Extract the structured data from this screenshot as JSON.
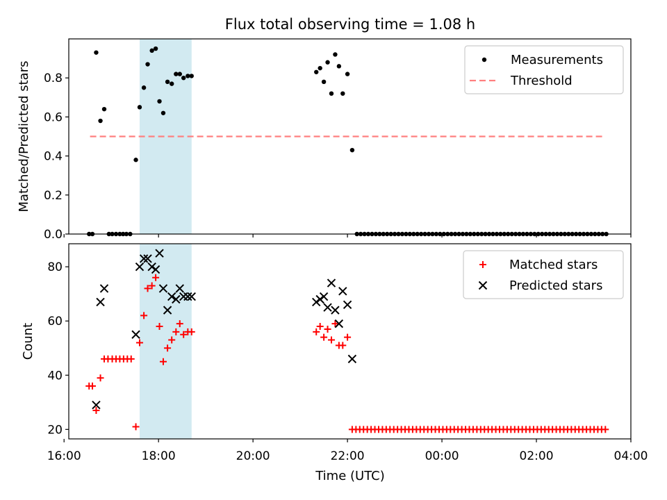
{
  "chart_data": [
    {
      "type": "scatter",
      "title": "Flux total observing time = 1.08 h",
      "xlabel": "",
      "ylabel": "Matched/Predicted stars",
      "xlim": [
        16.1,
        28.0
      ],
      "ylim": [
        0.0,
        1.0
      ],
      "yticks": [
        0.0,
        0.2,
        0.4,
        0.6,
        0.8
      ],
      "ytick_labels": [
        "0.0",
        "0.2",
        "0.4",
        "0.6",
        "0.8"
      ],
      "xticks": [
        16,
        18,
        20,
        22,
        24,
        26,
        28
      ],
      "highlight_span": [
        17.6,
        18.7
      ],
      "highlight_color": "#add8e6",
      "legend": {
        "placement": "upper right",
        "entries": [
          "Measurements",
          "Threshold"
        ]
      },
      "series": [
        {
          "name": "Measurements",
          "marker": "dot",
          "color": "#000000",
          "points": [
            [
              16.53,
              0.0
            ],
            [
              16.6,
              0.0
            ],
            [
              16.68,
              0.93
            ],
            [
              16.77,
              0.58
            ],
            [
              16.85,
              0.64
            ],
            [
              16.95,
              0.0
            ],
            [
              17.02,
              0.0
            ],
            [
              17.1,
              0.0
            ],
            [
              17.18,
              0.0
            ],
            [
              17.25,
              0.0
            ],
            [
              17.32,
              0.0
            ],
            [
              17.4,
              0.0
            ],
            [
              17.52,
              0.38
            ],
            [
              17.6,
              0.65
            ],
            [
              17.69,
              0.75
            ],
            [
              17.77,
              0.87
            ],
            [
              17.86,
              0.94
            ],
            [
              17.94,
              0.95
            ],
            [
              18.02,
              0.68
            ],
            [
              18.1,
              0.62
            ],
            [
              18.19,
              0.78
            ],
            [
              18.28,
              0.77
            ],
            [
              18.37,
              0.82
            ],
            [
              18.45,
              0.82
            ],
            [
              18.53,
              0.8
            ],
            [
              18.62,
              0.81
            ],
            [
              18.7,
              0.81
            ],
            [
              21.34,
              0.83
            ],
            [
              21.42,
              0.85
            ],
            [
              21.5,
              0.78
            ],
            [
              21.58,
              0.88
            ],
            [
              21.66,
              0.72
            ],
            [
              21.74,
              0.92
            ],
            [
              21.82,
              0.86
            ],
            [
              21.9,
              0.72
            ],
            [
              22.0,
              0.82
            ],
            [
              22.1,
              0.43
            ],
            [
              22.2,
              0.0
            ],
            [
              22.28,
              0.0
            ],
            [
              22.36,
              0.0
            ],
            [
              22.44,
              0.0
            ],
            [
              22.52,
              0.0
            ],
            [
              22.6,
              0.0
            ],
            [
              22.68,
              0.0
            ],
            [
              22.76,
              0.0
            ],
            [
              22.84,
              0.0
            ],
            [
              22.92,
              0.0
            ],
            [
              23.0,
              0.0
            ],
            [
              23.08,
              0.0
            ],
            [
              23.16,
              0.0
            ],
            [
              23.24,
              0.0
            ],
            [
              23.32,
              0.0
            ],
            [
              23.4,
              0.0
            ],
            [
              23.48,
              0.0
            ],
            [
              23.56,
              0.0
            ],
            [
              23.64,
              0.0
            ],
            [
              23.72,
              0.0
            ],
            [
              23.8,
              0.0
            ],
            [
              23.88,
              0.0
            ],
            [
              23.96,
              0.0
            ],
            [
              24.04,
              0.0
            ],
            [
              24.12,
              0.0
            ],
            [
              24.2,
              0.0
            ],
            [
              24.28,
              0.0
            ],
            [
              24.36,
              0.0
            ],
            [
              24.44,
              0.0
            ],
            [
              24.52,
              0.0
            ],
            [
              24.6,
              0.0
            ],
            [
              24.68,
              0.0
            ],
            [
              24.76,
              0.0
            ],
            [
              24.84,
              0.0
            ],
            [
              24.92,
              0.0
            ],
            [
              25.0,
              0.0
            ],
            [
              25.08,
              0.0
            ],
            [
              25.16,
              0.0
            ],
            [
              25.24,
              0.0
            ],
            [
              25.32,
              0.0
            ],
            [
              25.4,
              0.0
            ],
            [
              25.48,
              0.0
            ],
            [
              25.56,
              0.0
            ],
            [
              25.64,
              0.0
            ],
            [
              25.72,
              0.0
            ],
            [
              25.8,
              0.0
            ],
            [
              25.88,
              0.0
            ],
            [
              25.96,
              0.0
            ],
            [
              26.04,
              0.0
            ],
            [
              26.12,
              0.0
            ],
            [
              26.2,
              0.0
            ],
            [
              26.28,
              0.0
            ],
            [
              26.36,
              0.0
            ],
            [
              26.44,
              0.0
            ],
            [
              26.52,
              0.0
            ],
            [
              26.6,
              0.0
            ],
            [
              26.68,
              0.0
            ],
            [
              26.76,
              0.0
            ],
            [
              26.84,
              0.0
            ],
            [
              26.92,
              0.0
            ],
            [
              27.0,
              0.0
            ],
            [
              27.08,
              0.0
            ],
            [
              27.16,
              0.0
            ],
            [
              27.24,
              0.0
            ],
            [
              27.32,
              0.0
            ],
            [
              27.4,
              0.0
            ],
            [
              27.48,
              0.0
            ]
          ]
        },
        {
          "name": "Threshold",
          "type": "line",
          "style": "dashed",
          "color": "#ff7f7f",
          "points": [
            [
              16.55,
              0.5
            ],
            [
              27.45,
              0.5
            ]
          ]
        }
      ]
    },
    {
      "type": "scatter",
      "title": "",
      "xlabel": "Time (UTC)",
      "ylabel": "Count",
      "xlim": [
        16.1,
        28.0
      ],
      "ylim": [
        16.5,
        88.5
      ],
      "yticks": [
        20,
        40,
        60,
        80
      ],
      "ytick_labels": [
        "20",
        "40",
        "60",
        "80"
      ],
      "xticks": [
        16,
        18,
        20,
        22,
        24,
        26,
        28
      ],
      "xtick_labels": [
        "16:00",
        "18:00",
        "20:00",
        "22:00",
        "00:00",
        "02:00",
        "04:00"
      ],
      "highlight_span": [
        17.6,
        18.7
      ],
      "highlight_color": "#add8e6",
      "legend": {
        "placement": "upper right",
        "entries": [
          "Matched stars",
          "Predicted stars"
        ]
      },
      "series": [
        {
          "name": "Matched stars",
          "marker": "plus",
          "color": "#ff0000",
          "points": [
            [
              16.53,
              36
            ],
            [
              16.6,
              36
            ],
            [
              16.68,
              27
            ],
            [
              16.77,
              39
            ],
            [
              16.85,
              46
            ],
            [
              16.93,
              46
            ],
            [
              17.02,
              46
            ],
            [
              17.1,
              46
            ],
            [
              17.18,
              46
            ],
            [
              17.26,
              46
            ],
            [
              17.34,
              46
            ],
            [
              17.42,
              46
            ],
            [
              17.52,
              21
            ],
            [
              17.6,
              52
            ],
            [
              17.69,
              62
            ],
            [
              17.77,
              72
            ],
            [
              17.86,
              73
            ],
            [
              17.94,
              76
            ],
            [
              18.02,
              58
            ],
            [
              18.1,
              45
            ],
            [
              18.19,
              50
            ],
            [
              18.28,
              53
            ],
            [
              18.37,
              56
            ],
            [
              18.45,
              59
            ],
            [
              18.53,
              55
            ],
            [
              18.62,
              56
            ],
            [
              18.7,
              56
            ],
            [
              21.34,
              56
            ],
            [
              21.42,
              58
            ],
            [
              21.5,
              54
            ],
            [
              21.58,
              57
            ],
            [
              21.66,
              53
            ],
            [
              21.74,
              59
            ],
            [
              21.82,
              51
            ],
            [
              21.9,
              51
            ],
            [
              22.0,
              54
            ],
            [
              22.1,
              20
            ],
            [
              22.18,
              20
            ],
            [
              22.26,
              20
            ],
            [
              22.34,
              20
            ],
            [
              22.42,
              20
            ],
            [
              22.5,
              20
            ],
            [
              22.58,
              20
            ],
            [
              22.66,
              20
            ],
            [
              22.74,
              20
            ],
            [
              22.82,
              20
            ],
            [
              22.9,
              20
            ],
            [
              22.98,
              20
            ],
            [
              23.06,
              20
            ],
            [
              23.14,
              20
            ],
            [
              23.22,
              20
            ],
            [
              23.3,
              20
            ],
            [
              23.38,
              20
            ],
            [
              23.46,
              20
            ],
            [
              23.54,
              20
            ],
            [
              23.62,
              20
            ],
            [
              23.7,
              20
            ],
            [
              23.78,
              20
            ],
            [
              23.86,
              20
            ],
            [
              23.94,
              20
            ],
            [
              24.02,
              20
            ],
            [
              24.1,
              20
            ],
            [
              24.18,
              20
            ],
            [
              24.26,
              20
            ],
            [
              24.34,
              20
            ],
            [
              24.42,
              20
            ],
            [
              24.5,
              20
            ],
            [
              24.58,
              20
            ],
            [
              24.66,
              20
            ],
            [
              24.74,
              20
            ],
            [
              24.82,
              20
            ],
            [
              24.9,
              20
            ],
            [
              24.98,
              20
            ],
            [
              25.06,
              20
            ],
            [
              25.14,
              20
            ],
            [
              25.22,
              20
            ],
            [
              25.3,
              20
            ],
            [
              25.38,
              20
            ],
            [
              25.46,
              20
            ],
            [
              25.54,
              20
            ],
            [
              25.62,
              20
            ],
            [
              25.7,
              20
            ],
            [
              25.78,
              20
            ],
            [
              25.86,
              20
            ],
            [
              25.94,
              20
            ],
            [
              26.02,
              20
            ],
            [
              26.1,
              20
            ],
            [
              26.18,
              20
            ],
            [
              26.26,
              20
            ],
            [
              26.34,
              20
            ],
            [
              26.42,
              20
            ],
            [
              26.5,
              20
            ],
            [
              26.58,
              20
            ],
            [
              26.66,
              20
            ],
            [
              26.74,
              20
            ],
            [
              26.82,
              20
            ],
            [
              26.9,
              20
            ],
            [
              26.98,
              20
            ],
            [
              27.06,
              20
            ],
            [
              27.14,
              20
            ],
            [
              27.22,
              20
            ],
            [
              27.3,
              20
            ],
            [
              27.38,
              20
            ],
            [
              27.46,
              20
            ]
          ]
        },
        {
          "name": "Predicted stars",
          "marker": "x",
          "color": "#000000",
          "points": [
            [
              16.68,
              29
            ],
            [
              16.77,
              67
            ],
            [
              16.85,
              72
            ],
            [
              17.52,
              55
            ],
            [
              17.6,
              80
            ],
            [
              17.69,
              83
            ],
            [
              17.77,
              83
            ],
            [
              17.86,
              80
            ],
            [
              17.94,
              79
            ],
            [
              18.02,
              85
            ],
            [
              18.1,
              72
            ],
            [
              18.19,
              64
            ],
            [
              18.28,
              69
            ],
            [
              18.37,
              68
            ],
            [
              18.45,
              72
            ],
            [
              18.53,
              69
            ],
            [
              18.62,
              69
            ],
            [
              18.7,
              69
            ],
            [
              21.34,
              67
            ],
            [
              21.42,
              68
            ],
            [
              21.5,
              69
            ],
            [
              21.58,
              65
            ],
            [
              21.66,
              74
            ],
            [
              21.74,
              64
            ],
            [
              21.82,
              59
            ],
            [
              21.9,
              71
            ],
            [
              22.0,
              66
            ],
            [
              22.1,
              46
            ]
          ]
        }
      ]
    }
  ]
}
